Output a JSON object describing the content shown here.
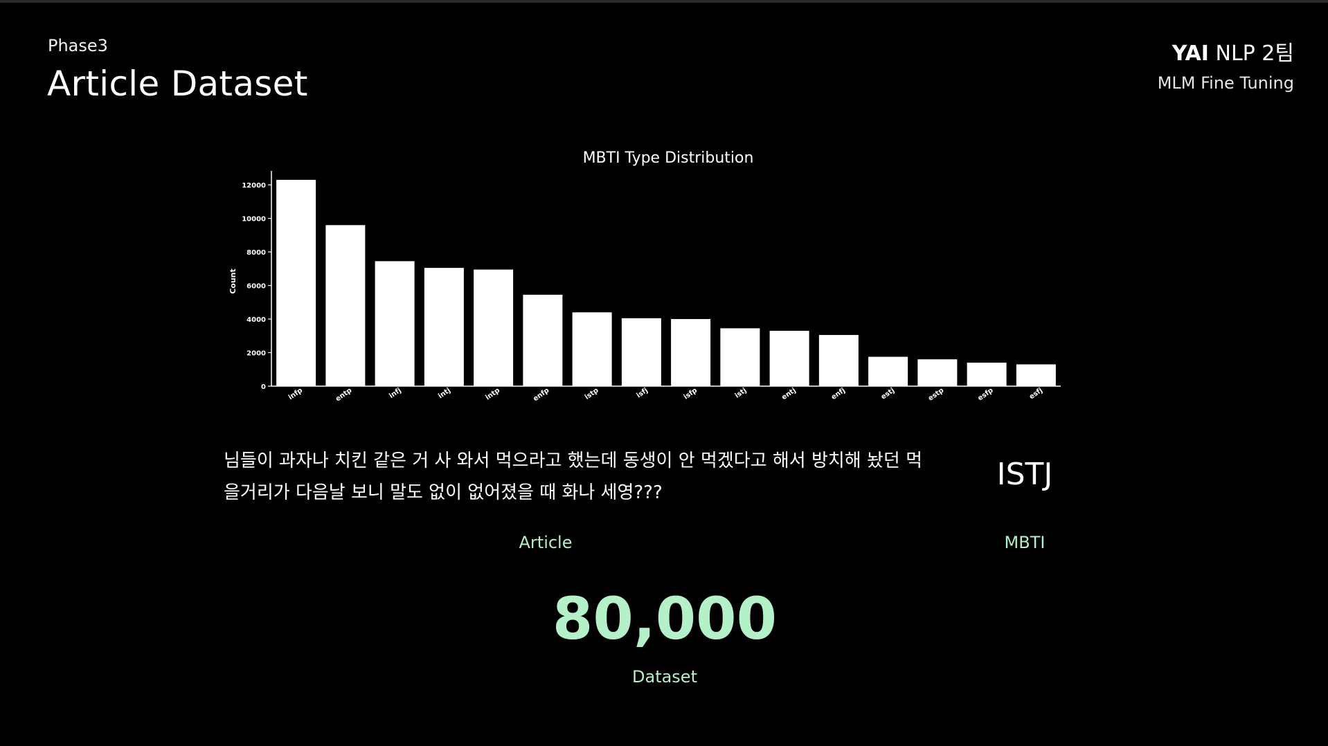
{
  "header": {
    "phase": "Phase3",
    "title": "Article Dataset",
    "brand_bold": "YAI",
    "brand_rest": "NLP 2팀",
    "subtitle": "MLM Fine Tuning"
  },
  "chart_data": {
    "type": "bar",
    "title": "MBTI Type Distribution",
    "xlabel": "",
    "ylabel": "Count",
    "ylim": [
      0,
      12500
    ],
    "yticks": [
      0,
      2000,
      4000,
      6000,
      8000,
      10000,
      12000
    ],
    "categories": [
      "infp",
      "entp",
      "infj",
      "intj",
      "intp",
      "enfp",
      "istp",
      "isfj",
      "isfp",
      "istj",
      "entj",
      "enfj",
      "estj",
      "estp",
      "esfp",
      "esfj"
    ],
    "values": [
      12300,
      9600,
      7450,
      7050,
      6950,
      5450,
      4400,
      4050,
      4000,
      3450,
      3300,
      3050,
      1750,
      1600,
      1400,
      1300
    ],
    "bar_color": "#ffffff",
    "grid": false
  },
  "example": {
    "article": "님들이 과자나 치킨 같은 거 사 와서 먹으라고 했는데 동생이 안 먹겠다고 해서 방치해 놨던 먹을거리가 다음날 보니 말도 없이 없어졌을 때 화나 세영???",
    "mbti": "ISTJ",
    "article_label": "Article",
    "mbti_label": "MBTI"
  },
  "dataset": {
    "count": "80,000",
    "label": "Dataset"
  },
  "colors": {
    "background": "#000000",
    "accent": "#b4f0c8"
  }
}
